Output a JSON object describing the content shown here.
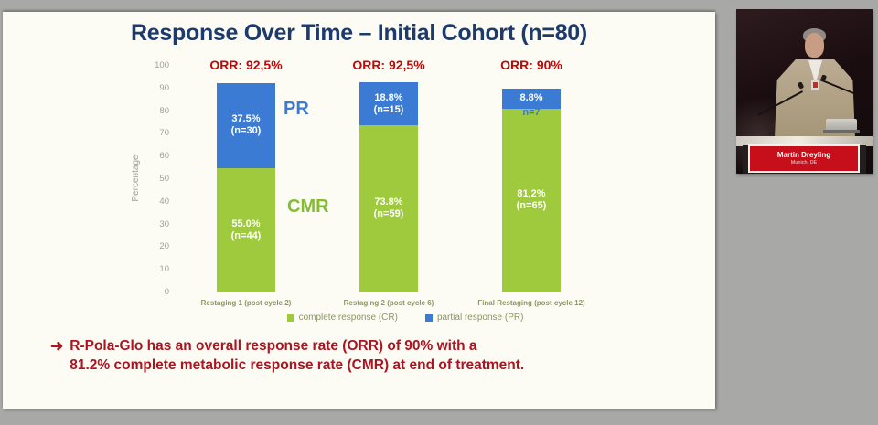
{
  "window": {
    "background": "#a8a8a6"
  },
  "slide": {
    "title": "Response Over Time – Initial Cohort (n=80)",
    "takeaway": {
      "arrow": "➜",
      "line1": "R-Pola-Glo has an overall response rate (ORR) of 90% with a",
      "line2": "81.2% complete metabolic response rate (CMR) at end of treatment."
    }
  },
  "chart_data": {
    "type": "stacked-bar",
    "title": "Response Over Time – Initial Cohort (n=80)",
    "ylabel": "Percentage",
    "ylim": [
      0,
      100
    ],
    "yticks": [
      100,
      90,
      80,
      70,
      60,
      50,
      40,
      30,
      20,
      10,
      0
    ],
    "categories": [
      "Restaging 1 (post cycle 2)",
      "Restaging 2 (post cycle 6)",
      "Final Restaging (post cycle 12)"
    ],
    "orr_labels": [
      "ORR: 92,5%",
      "ORR: 92,5%",
      "ORR: 90%"
    ],
    "series": [
      {
        "name": "complete response (CR)",
        "color": "#9fca3d",
        "values": [
          55.0,
          73.8,
          81.2
        ],
        "counts": [
          44,
          59,
          65
        ],
        "bar_labels": [
          [
            "55.0%",
            "(n=44)"
          ],
          [
            "73.8%",
            "(n=59)"
          ],
          [
            "81,2%",
            "(n=65)"
          ]
        ]
      },
      {
        "name": "partial response (PR)",
        "color": "#3b7bd3",
        "values": [
          37.5,
          18.8,
          8.8
        ],
        "counts": [
          30,
          15,
          7
        ],
        "bar_labels": [
          [
            "37.5%",
            "(n=30)"
          ],
          [
            "18.8%",
            "(n=15)"
          ],
          [
            "8.8%"
          ]
        ]
      }
    ],
    "pr_outside_labels": [
      null,
      null,
      "n=7"
    ],
    "annotations": [
      {
        "text": "PR",
        "color": "#3b7bd3"
      },
      {
        "text": "CMR",
        "color": "#83bd32"
      }
    ],
    "legend_position": "bottom",
    "grid": false
  },
  "video": {
    "speaker_name": "Martin Dreyling",
    "speaker_location": "Munich, DE"
  }
}
